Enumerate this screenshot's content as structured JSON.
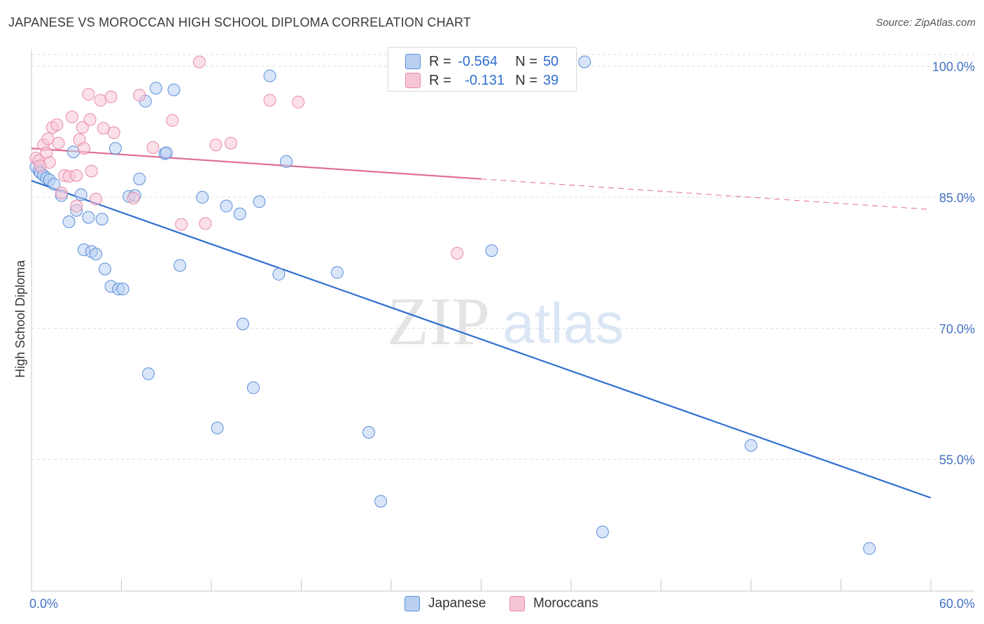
{
  "header": {
    "title": "JAPANESE VS MOROCCAN HIGH SCHOOL DIPLOMA CORRELATION CHART",
    "source": "Source: ZipAtlas.com"
  },
  "legend": {
    "r_label": "R =",
    "n_label": "N =",
    "japanese": {
      "r": "-0.564",
      "n": "50"
    },
    "moroccan": {
      "r": "-0.131",
      "n": "39"
    }
  },
  "bottom_legend": {
    "japanese": "Japanese",
    "moroccan": "Moroccans"
  },
  "watermark": {
    "zip": "ZIP",
    "atlas": "atlas"
  },
  "chart_data": {
    "type": "scatter",
    "title": "JAPANESE VS MOROCCAN HIGH SCHOOL DIPLOMA CORRELATION CHART",
    "xlabel": "",
    "ylabel": "High School Diploma",
    "xlim": [
      0,
      60
    ],
    "ylim": [
      40,
      101.5
    ],
    "x_tick_labels": [
      "0.0%",
      "60.0%"
    ],
    "y_ticks": [
      55,
      70,
      85,
      100
    ],
    "y_tick_labels": [
      "55.0%",
      "70.0%",
      "85.0%",
      "100.0%"
    ],
    "grid": true,
    "colors": {
      "japanese": "#5b8fd9",
      "japanese_fill": "#b9d0f2",
      "moroccan": "#e88aa8",
      "moroccan_fill": "#f7c6d6",
      "japanese_line": "#2f6fd0",
      "moroccan_line": "#e06c95",
      "tick": "#4472c4"
    },
    "series": [
      {
        "name": "Japanese",
        "points": [
          [
            0.3,
            88.5
          ],
          [
            0.5,
            88.0
          ],
          [
            0.6,
            87.8
          ],
          [
            0.8,
            87.5
          ],
          [
            1.0,
            87.2
          ],
          [
            1.2,
            87.0
          ],
          [
            1.5,
            86.5
          ],
          [
            2.0,
            85.2
          ],
          [
            2.5,
            82.2
          ],
          [
            2.8,
            90.2
          ],
          [
            3.0,
            83.5
          ],
          [
            3.3,
            85.3
          ],
          [
            3.5,
            79.0
          ],
          [
            3.8,
            82.7
          ],
          [
            4.0,
            78.8
          ],
          [
            4.3,
            78.5
          ],
          [
            4.7,
            82.5
          ],
          [
            4.9,
            76.8
          ],
          [
            5.3,
            74.8
          ],
          [
            5.6,
            90.6
          ],
          [
            5.8,
            74.5
          ],
          [
            6.1,
            74.5
          ],
          [
            6.5,
            85.1
          ],
          [
            6.9,
            85.2
          ],
          [
            7.2,
            87.1
          ],
          [
            7.6,
            96.0
          ],
          [
            7.8,
            64.8
          ],
          [
            8.3,
            97.5
          ],
          [
            8.9,
            90.0
          ],
          [
            9.0,
            90.1
          ],
          [
            9.5,
            97.3
          ],
          [
            9.9,
            77.2
          ],
          [
            11.4,
            85.0
          ],
          [
            12.4,
            58.6
          ],
          [
            13.0,
            84.0
          ],
          [
            13.9,
            83.1
          ],
          [
            14.1,
            70.5
          ],
          [
            14.8,
            63.2
          ],
          [
            15.2,
            84.5
          ],
          [
            15.9,
            98.9
          ],
          [
            16.5,
            76.2
          ],
          [
            17.0,
            89.1
          ],
          [
            20.4,
            76.4
          ],
          [
            22.5,
            58.1
          ],
          [
            23.3,
            50.2
          ],
          [
            30.7,
            78.9
          ],
          [
            36.9,
            100.5
          ],
          [
            38.1,
            46.7
          ],
          [
            48.0,
            56.6
          ],
          [
            55.9,
            44.8
          ]
        ]
      },
      {
        "name": "Moroccans",
        "points": [
          [
            0.3,
            89.5
          ],
          [
            0.5,
            89.2
          ],
          [
            0.6,
            88.6
          ],
          [
            0.8,
            91.0
          ],
          [
            1.0,
            90.1
          ],
          [
            1.1,
            91.7
          ],
          [
            1.2,
            89.0
          ],
          [
            1.4,
            93.0
          ],
          [
            1.7,
            93.3
          ],
          [
            1.8,
            91.2
          ],
          [
            2.0,
            85.5
          ],
          [
            2.2,
            87.5
          ],
          [
            2.5,
            87.4
          ],
          [
            2.7,
            94.2
          ],
          [
            3.0,
            87.5
          ],
          [
            3.0,
            84.0
          ],
          [
            3.2,
            91.6
          ],
          [
            3.4,
            93.0
          ],
          [
            3.5,
            90.6
          ],
          [
            3.8,
            96.8
          ],
          [
            3.9,
            93.9
          ],
          [
            4.0,
            88.0
          ],
          [
            4.3,
            84.8
          ],
          [
            4.6,
            96.1
          ],
          [
            4.8,
            92.9
          ],
          [
            5.3,
            96.5
          ],
          [
            5.5,
            92.4
          ],
          [
            6.8,
            84.9
          ],
          [
            7.2,
            96.7
          ],
          [
            8.1,
            90.7
          ],
          [
            9.4,
            93.8
          ],
          [
            10.0,
            81.9
          ],
          [
            11.2,
            100.5
          ],
          [
            11.6,
            82.0
          ],
          [
            12.3,
            91.0
          ],
          [
            13.3,
            91.2
          ],
          [
            15.9,
            96.1
          ],
          [
            17.8,
            95.9
          ],
          [
            28.4,
            78.6
          ]
        ]
      }
    ],
    "trend_lines": [
      {
        "name": "Japanese",
        "x": [
          0,
          60
        ],
        "y": [
          86.9,
          50.6
        ],
        "style": "solid"
      },
      {
        "name": "Moroccans",
        "x": [
          0,
          30
        ],
        "y": [
          90.6,
          87.1
        ],
        "style": "solid"
      },
      {
        "name": "Moroccans",
        "x": [
          30,
          60
        ],
        "y": [
          87.1,
          83.6
        ],
        "style": "dashed"
      }
    ]
  }
}
